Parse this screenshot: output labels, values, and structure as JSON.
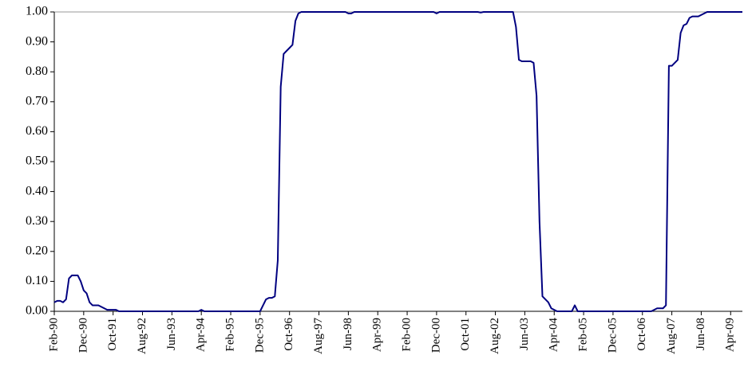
{
  "chart_data": {
    "type": "line",
    "categories": [
      "Feb-90",
      null,
      null,
      null,
      null,
      null,
      null,
      null,
      null,
      null,
      "Dec-90",
      null,
      null,
      null,
      null,
      null,
      null,
      null,
      null,
      null,
      "Oct-91",
      null,
      null,
      null,
      null,
      null,
      null,
      null,
      null,
      null,
      "Aug-92",
      null,
      null,
      null,
      null,
      null,
      null,
      null,
      null,
      null,
      "Jun-93",
      null,
      null,
      null,
      null,
      null,
      null,
      null,
      null,
      null,
      "Apr-94",
      null,
      null,
      null,
      null,
      null,
      null,
      null,
      null,
      null,
      "Feb-95",
      null,
      null,
      null,
      null,
      null,
      null,
      null,
      null,
      null,
      "Dec-95",
      null,
      null,
      null,
      null,
      null,
      null,
      null,
      null,
      null,
      "Oct-96",
      null,
      null,
      null,
      null,
      null,
      null,
      null,
      null,
      null,
      "Aug-97",
      null,
      null,
      null,
      null,
      null,
      null,
      null,
      null,
      null,
      "Jun-98",
      null,
      null,
      null,
      null,
      null,
      null,
      null,
      null,
      null,
      "Apr-99",
      null,
      null,
      null,
      null,
      null,
      null,
      null,
      null,
      null,
      "Feb-00",
      null,
      null,
      null,
      null,
      null,
      null,
      null,
      null,
      null,
      "Dec-00",
      null,
      null,
      null,
      null,
      null,
      null,
      null,
      null,
      null,
      "Oct-01",
      null,
      null,
      null,
      null,
      null,
      null,
      null,
      null,
      null,
      "Aug-02",
      null,
      null,
      null,
      null,
      null,
      null,
      null,
      null,
      null,
      "Jun-03",
      null,
      null,
      null,
      null,
      null,
      null,
      null,
      null,
      null,
      "Apr-04",
      null,
      null,
      null,
      null,
      null,
      null,
      null,
      null,
      null,
      "Feb-05",
      null,
      null,
      null,
      null,
      null,
      null,
      null,
      null,
      null,
      "Dec-05",
      null,
      null,
      null,
      null,
      null,
      null,
      null,
      null,
      null,
      "Oct-06",
      null,
      null,
      null,
      null,
      null,
      null,
      null,
      null,
      null,
      "Aug-07",
      null,
      null,
      null,
      null,
      null,
      null,
      null,
      null,
      null,
      "Jun-08",
      null,
      null,
      null,
      null,
      null,
      null,
      null,
      null,
      null,
      "Apr-09",
      null,
      null,
      null,
      null
    ],
    "series": [
      {
        "color": "#000080",
        "values": [
          0.03,
          0.035,
          0.035,
          0.03,
          0.04,
          0.11,
          0.12,
          0.12,
          0.12,
          0.1,
          0.07,
          0.06,
          0.03,
          0.02,
          0.02,
          0.02,
          0.015,
          0.01,
          0.005,
          0.005,
          0.005,
          0.005,
          0,
          0,
          0,
          0,
          0,
          0,
          0,
          0,
          0,
          0,
          0,
          0,
          0,
          0,
          0,
          0,
          0,
          0,
          0,
          0,
          0,
          0,
          0,
          0,
          0,
          0,
          0,
          0,
          0.005,
          0,
          0,
          0,
          0,
          0,
          0,
          0,
          0,
          0,
          0,
          0,
          0,
          0,
          0,
          0,
          0,
          0,
          0,
          0,
          0,
          0.02,
          0.04,
          0.045,
          0.045,
          0.05,
          0.17,
          0.75,
          0.86,
          0.87,
          0.88,
          0.89,
          0.97,
          0.995,
          1,
          1,
          1,
          1,
          1,
          1,
          1,
          1,
          1,
          1,
          1,
          1,
          1,
          1,
          1,
          1,
          0.995,
          0.995,
          1,
          1,
          1,
          1,
          1,
          1,
          1,
          1,
          1,
          1,
          1,
          1,
          1,
          1,
          1,
          1,
          1,
          1,
          1,
          1,
          1,
          1,
          1,
          1,
          1,
          1,
          1,
          1,
          0.995,
          1,
          1,
          1,
          1,
          1,
          1,
          1,
          1,
          1,
          1,
          1,
          1,
          1,
          1,
          0.998,
          1,
          1,
          1,
          1,
          1,
          1,
          1,
          1,
          1,
          1,
          1,
          0.95,
          0.84,
          0.835,
          0.835,
          0.835,
          0.835,
          0.83,
          0.72,
          0.3,
          0.05,
          0.04,
          0.03,
          0.01,
          0.005,
          0,
          0,
          0,
          0,
          0,
          0,
          0.02,
          0,
          0,
          0,
          0,
          0,
          0,
          0,
          0,
          0,
          0,
          0,
          0,
          0,
          0,
          0,
          0,
          0,
          0,
          0,
          0,
          0,
          0,
          0,
          0,
          0,
          0,
          0.005,
          0.01,
          0.01,
          0.01,
          0.02,
          0.82,
          0.82,
          0.83,
          0.84,
          0.93,
          0.955,
          0.96,
          0.98,
          0.985,
          0.985,
          0.985,
          0.99,
          0.995,
          1,
          1,
          1,
          1,
          1,
          1,
          1,
          1,
          1,
          1,
          1,
          1,
          1
        ]
      }
    ],
    "ylim": [
      0,
      1
    ],
    "yticks": [
      {
        "value": 0,
        "label": "0.00"
      },
      {
        "value": 0.1,
        "label": "0.10"
      },
      {
        "value": 0.2,
        "label": "0.20"
      },
      {
        "value": 0.3,
        "label": "0.30"
      },
      {
        "value": 0.4,
        "label": "0.40"
      },
      {
        "value": 0.5,
        "label": "0.50"
      },
      {
        "value": 0.6,
        "label": "0.60"
      },
      {
        "value": 0.7,
        "label": "0.70"
      },
      {
        "value": 0.8,
        "label": "0.80"
      },
      {
        "value": 0.9,
        "label": "0.90"
      },
      {
        "value": 1,
        "label": "1.00"
      }
    ],
    "grid": false
  }
}
